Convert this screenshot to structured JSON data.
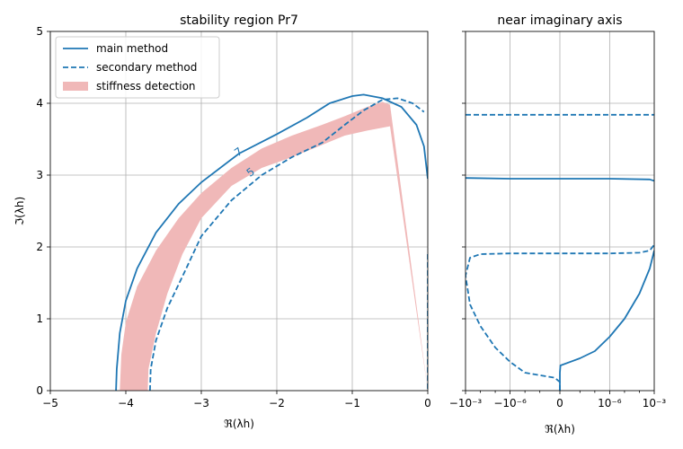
{
  "colors": {
    "main": "#1f77b4",
    "fill": "#f0b8b8",
    "grid": "#b0b0b0"
  },
  "chart_data": [
    {
      "type": "line",
      "title": "stability region Pr7",
      "xlabel": "ℜ(λh)",
      "ylabel": "ℑ(λh)",
      "xlim": [
        -5,
        0
      ],
      "ylim": [
        0,
        5
      ],
      "xticks": [
        -5,
        -4,
        -3,
        -2,
        -1,
        0
      ],
      "xtick_labels": [
        "−5",
        "−4",
        "−3",
        "−2",
        "−1",
        "0"
      ],
      "yticks": [
        0,
        1,
        2,
        3,
        4,
        5
      ],
      "ytick_labels": [
        "0",
        "1",
        "2",
        "3",
        "4",
        "5"
      ],
      "grid": true,
      "legend_position": "top-left",
      "series": [
        {
          "name": "main method",
          "style": "solid",
          "points": [
            [
              -4.13,
              0.0
            ],
            [
              -4.12,
              0.3
            ],
            [
              -4.08,
              0.8
            ],
            [
              -4.0,
              1.25
            ],
            [
              -3.85,
              1.7
            ],
            [
              -3.6,
              2.2
            ],
            [
              -3.3,
              2.6
            ],
            [
              -3.0,
              2.9
            ],
            [
              -2.5,
              3.3
            ],
            [
              -2.0,
              3.57
            ],
            [
              -1.6,
              3.8
            ],
            [
              -1.3,
              4.0
            ],
            [
              -1.0,
              4.1
            ],
            [
              -0.85,
              4.12
            ],
            [
              -0.6,
              4.07
            ],
            [
              -0.35,
              3.95
            ],
            [
              -0.15,
              3.7
            ],
            [
              -0.05,
              3.4
            ],
            [
              0.0,
              2.95
            ]
          ]
        },
        {
          "name": "secondary method",
          "style": "dashed",
          "points": [
            [
              -3.68,
              0.0
            ],
            [
              -3.67,
              0.3
            ],
            [
              -3.6,
              0.7
            ],
            [
              -3.45,
              1.15
            ],
            [
              -3.2,
              1.7
            ],
            [
              -3.0,
              2.15
            ],
            [
              -2.6,
              2.65
            ],
            [
              -2.2,
              3.0
            ],
            [
              -1.8,
              3.25
            ],
            [
              -1.4,
              3.45
            ],
            [
              -1.1,
              3.7
            ],
            [
              -0.85,
              3.9
            ],
            [
              -0.6,
              4.05
            ],
            [
              -0.4,
              4.07
            ],
            [
              -0.2,
              4.0
            ],
            [
              -0.05,
              3.88
            ]
          ]
        },
        {
          "name": "secondary method (axis segment)",
          "style": "dashed",
          "points": [
            [
              0.0,
              1.9
            ],
            [
              0.0,
              0.0
            ]
          ]
        }
      ],
      "fill": {
        "name": "stiffness detection",
        "outer": [
          [
            -4.08,
            0.0
          ],
          [
            -4.06,
            0.5
          ],
          [
            -4.0,
            0.95
          ],
          [
            -3.85,
            1.45
          ],
          [
            -3.6,
            1.95
          ],
          [
            -3.3,
            2.4
          ],
          [
            -3.0,
            2.75
          ],
          [
            -2.6,
            3.1
          ],
          [
            -2.2,
            3.37
          ],
          [
            -1.8,
            3.55
          ],
          [
            -1.4,
            3.7
          ],
          [
            -1.1,
            3.82
          ],
          [
            -0.8,
            3.95
          ],
          [
            -0.6,
            4.02
          ],
          [
            -0.5,
            3.98
          ],
          [
            0.0,
            0.0
          ]
        ],
        "inner": [
          [
            -0.5,
            3.68
          ],
          [
            -0.8,
            3.62
          ],
          [
            -1.1,
            3.55
          ],
          [
            -1.4,
            3.42
          ],
          [
            -1.8,
            3.25
          ],
          [
            -2.2,
            3.1
          ],
          [
            -2.6,
            2.85
          ],
          [
            -3.0,
            2.4
          ],
          [
            -3.25,
            1.9
          ],
          [
            -3.45,
            1.35
          ],
          [
            -3.6,
            0.8
          ],
          [
            -3.7,
            0.3
          ],
          [
            -3.71,
            0.0
          ]
        ]
      },
      "contour_labels": [
        {
          "text": "7",
          "x": -2.48,
          "y": 3.28
        },
        {
          "text": "5",
          "x": -2.32,
          "y": 3.0
        }
      ]
    },
    {
      "type": "line",
      "title": "near imaginary axis",
      "xlabel": "ℜ(λh)",
      "xscale": "symlog",
      "xlim": [
        -0.001,
        0.001
      ],
      "ylim": [
        0,
        5
      ],
      "xtick_labels": [
        "−10⁻³",
        "−10⁻⁶",
        "0",
        "10⁻⁶",
        "10⁻³"
      ],
      "grid": true,
      "series": [
        {
          "name": "main method (upper branch)",
          "style": "solid",
          "points": [
            [
              -0.001,
              2.96
            ],
            [
              -1e-06,
              2.95
            ],
            [
              0,
              2.95
            ],
            [
              1e-06,
              2.95
            ],
            [
              0.0005,
              2.94
            ],
            [
              0.001,
              2.92
            ]
          ]
        },
        {
          "name": "main method (lower branch)",
          "style": "solid",
          "points": [
            [
              0,
              0.0
            ],
            [
              0,
              0.1
            ],
            [
              0,
              0.25
            ],
            [
              1e-10,
              0.35
            ],
            [
              1e-08,
              0.45
            ],
            [
              1e-07,
              0.55
            ],
            [
              1e-06,
              0.75
            ],
            [
              1e-05,
              1.0
            ],
            [
              0.0001,
              1.35
            ],
            [
              0.0005,
              1.7
            ],
            [
              0.001,
              1.95
            ]
          ]
        },
        {
          "name": "secondary method (upper branch)",
          "style": "dashed",
          "points": [
            [
              -0.001,
              3.84
            ],
            [
              0,
              3.84
            ],
            [
              0.001,
              3.84
            ]
          ]
        },
        {
          "name": "secondary method (loop)",
          "style": "dashed",
          "points": [
            [
              0,
              0.0
            ],
            [
              0,
              0.12
            ],
            [
              -1e-09,
              0.18
            ],
            [
              -1e-07,
              0.25
            ],
            [
              -1e-06,
              0.4
            ],
            [
              -1e-05,
              0.6
            ],
            [
              -0.0001,
              0.9
            ],
            [
              -0.0005,
              1.2
            ],
            [
              -0.001,
              1.6
            ],
            [
              -0.0005,
              1.85
            ],
            [
              -0.0001,
              1.9
            ],
            [
              -1e-06,
              1.91
            ],
            [
              0,
              1.91
            ],
            [
              1e-06,
              1.91
            ],
            [
              0.0001,
              1.92
            ],
            [
              0.0005,
              1.95
            ],
            [
              0.001,
              2.03
            ]
          ]
        }
      ]
    }
  ],
  "legend": [
    {
      "label": "main method",
      "kind": "solid"
    },
    {
      "label": "secondary method",
      "kind": "dashed"
    },
    {
      "label": "stiffness detection",
      "kind": "patch"
    }
  ]
}
